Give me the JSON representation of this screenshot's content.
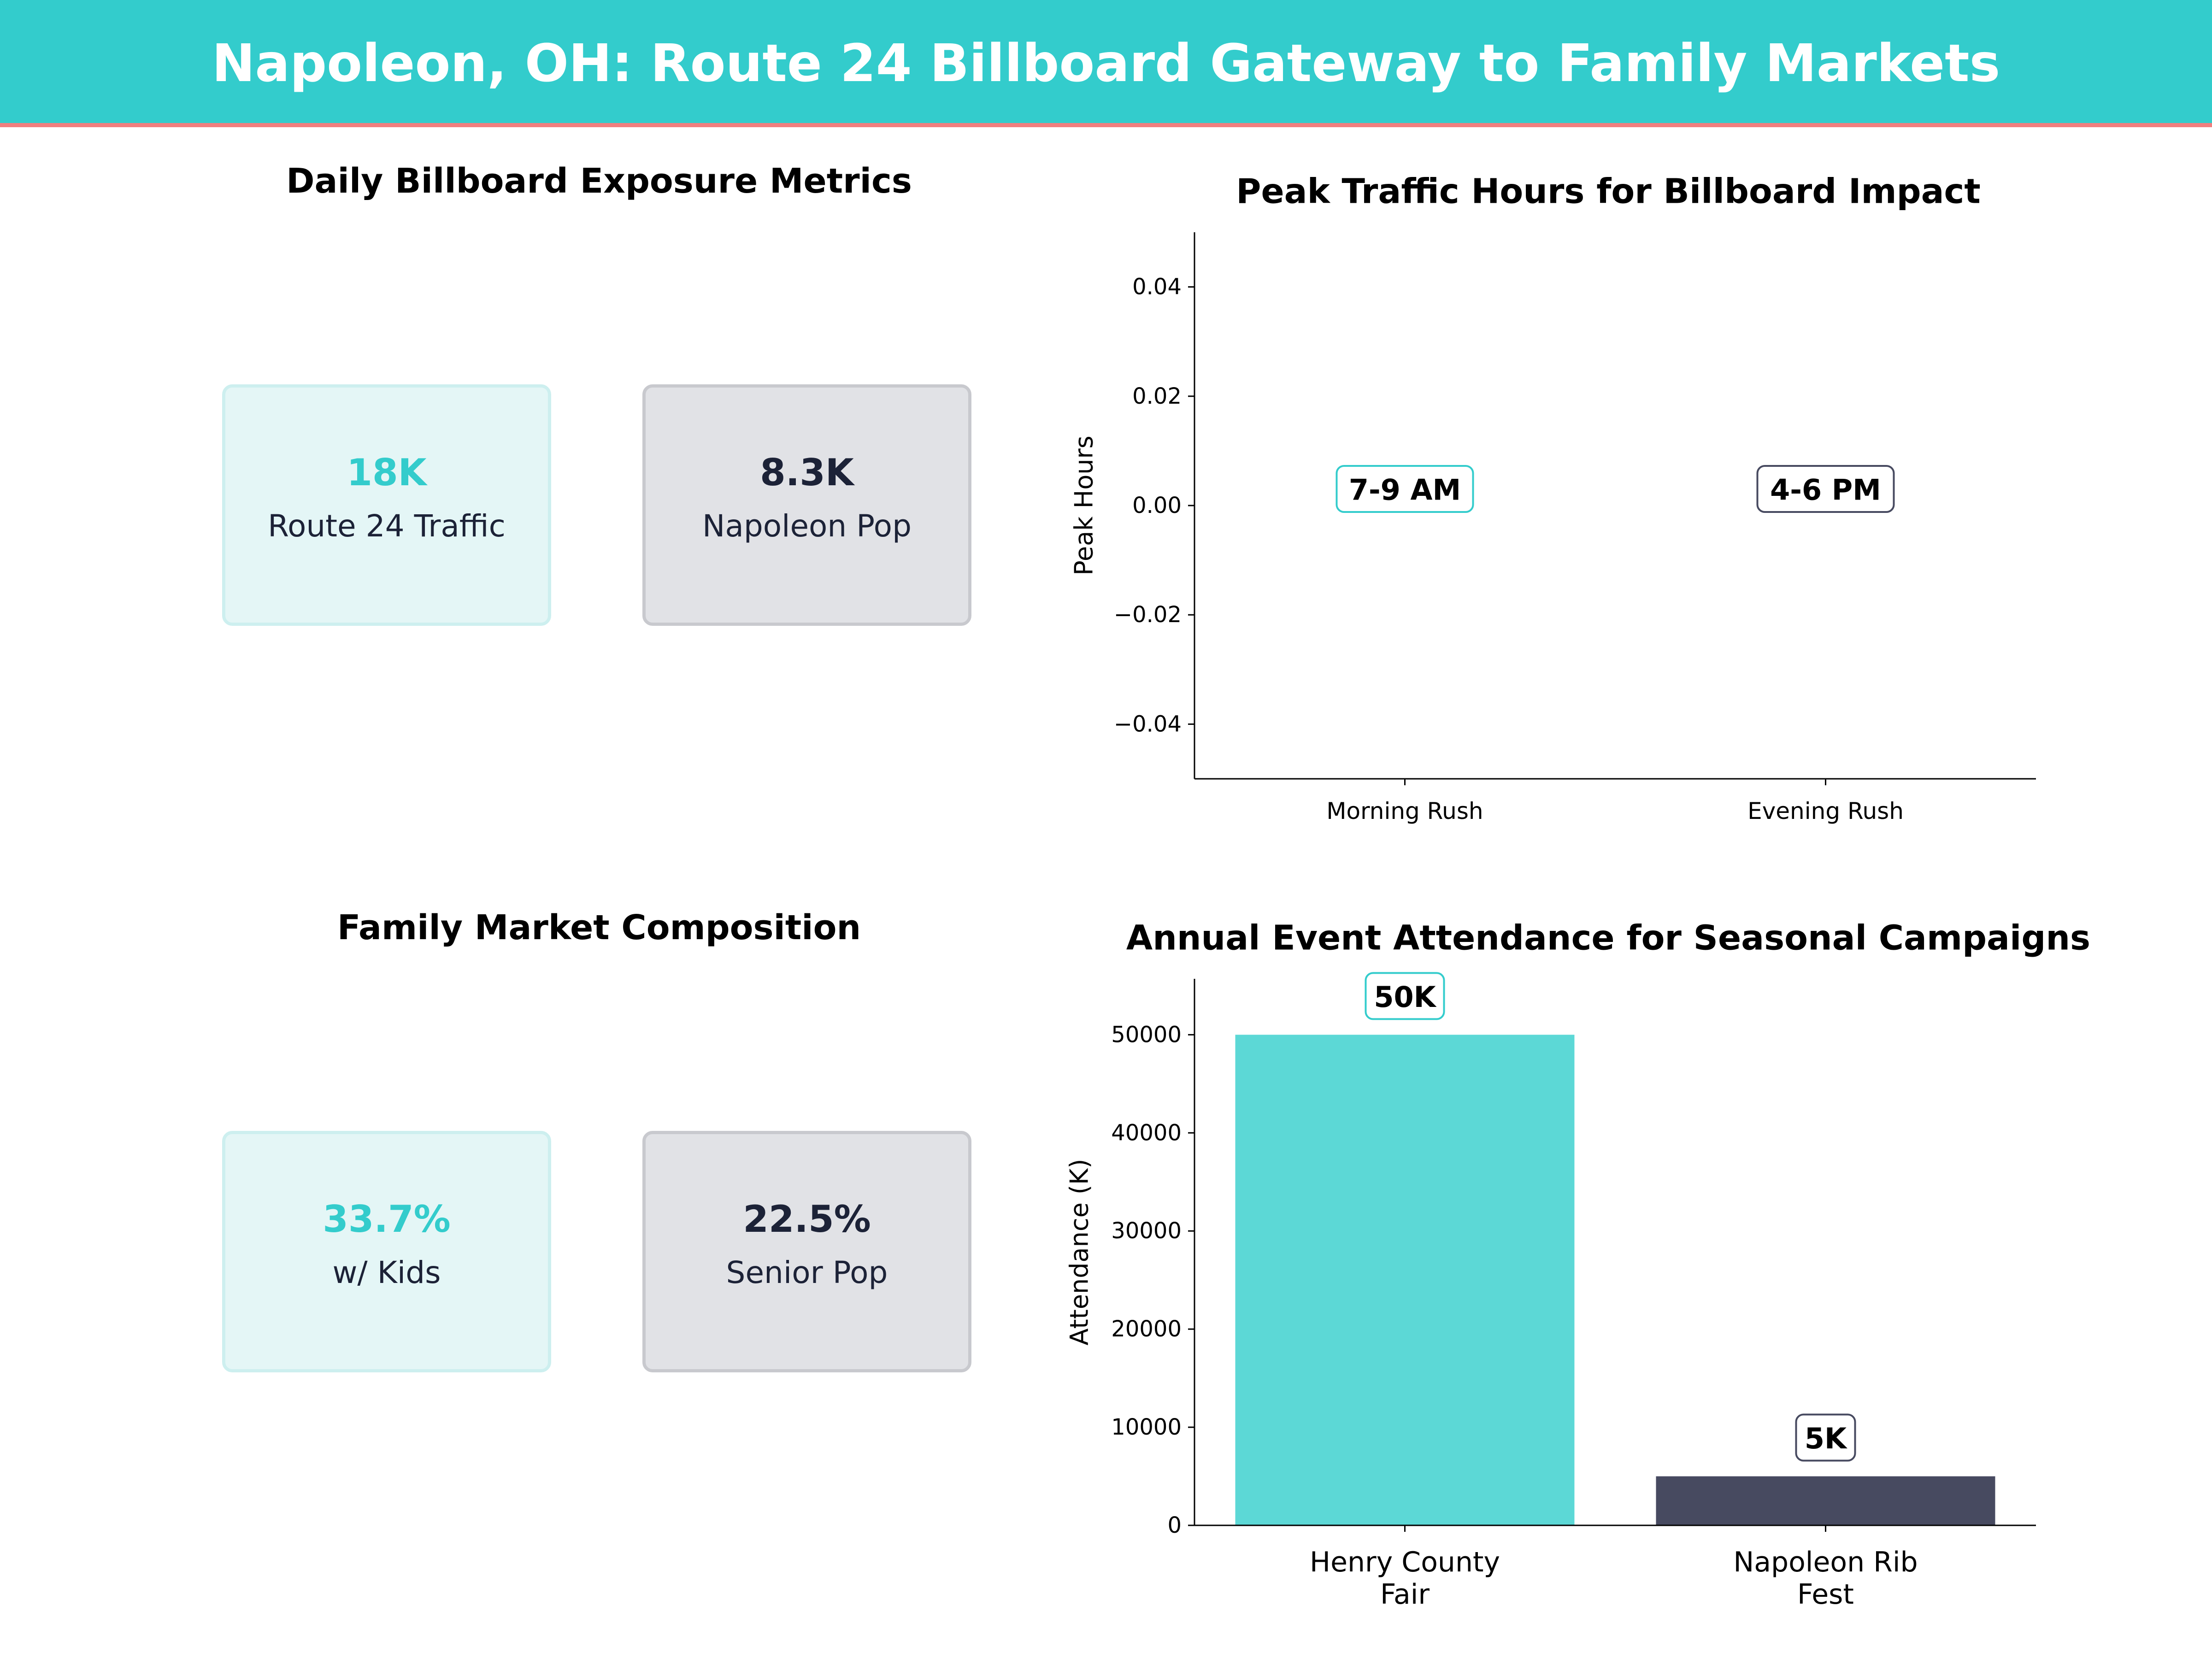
{
  "header": {
    "title": "Napoleon, OH: Route 24 Billboard Gateway to Family Markets"
  },
  "colors": {
    "teal": "#33cccc",
    "teal_bar": "#5cd8d6",
    "navy": "#474a60",
    "accent": "#f07f7f",
    "dark_text": "#1c2237"
  },
  "exposure": {
    "title": "Daily Billboard Exposure Metrics",
    "cards": [
      {
        "value": "18K",
        "label": "Route 24 Traffic"
      },
      {
        "value": "8.3K",
        "label": "Napoleon Pop"
      }
    ]
  },
  "family": {
    "title": "Family Market Composition",
    "cards": [
      {
        "value": "33.7%",
        "label": "w/ Kids"
      },
      {
        "value": "22.5%",
        "label": "Senior Pop"
      }
    ]
  },
  "chart_data": [
    {
      "type": "bar",
      "title": "Peak Traffic Hours for Billboard Impact",
      "categories": [
        "Morning Rush",
        "Evening Rush"
      ],
      "values": [
        0,
        0
      ],
      "annotations": [
        "7-9 AM",
        "4-6 PM"
      ],
      "xlabel": "",
      "ylabel": "Peak Hours",
      "ylim": [
        -0.05,
        0.05
      ],
      "yticks": [
        -0.04,
        -0.02,
        0.0,
        0.02,
        0.04
      ],
      "ytick_labels": [
        "−0.04",
        "−0.02",
        "0.00",
        "0.02",
        "0.04"
      ]
    },
    {
      "type": "bar",
      "title": "Annual Event Attendance for Seasonal Campaigns",
      "categories": [
        [
          "Henry County",
          "Fair"
        ],
        [
          "Napoleon Rib",
          "Fest"
        ]
      ],
      "values": [
        50000,
        5000
      ],
      "annotations": [
        "50K",
        "5K"
      ],
      "xlabel": "",
      "ylabel": "Attendance (K)",
      "ylim": [
        0,
        55700
      ],
      "yticks": [
        0,
        10000,
        20000,
        30000,
        40000,
        50000
      ],
      "ytick_labels": [
        "0",
        "10000",
        "20000",
        "30000",
        "40000",
        "50000"
      ]
    }
  ]
}
